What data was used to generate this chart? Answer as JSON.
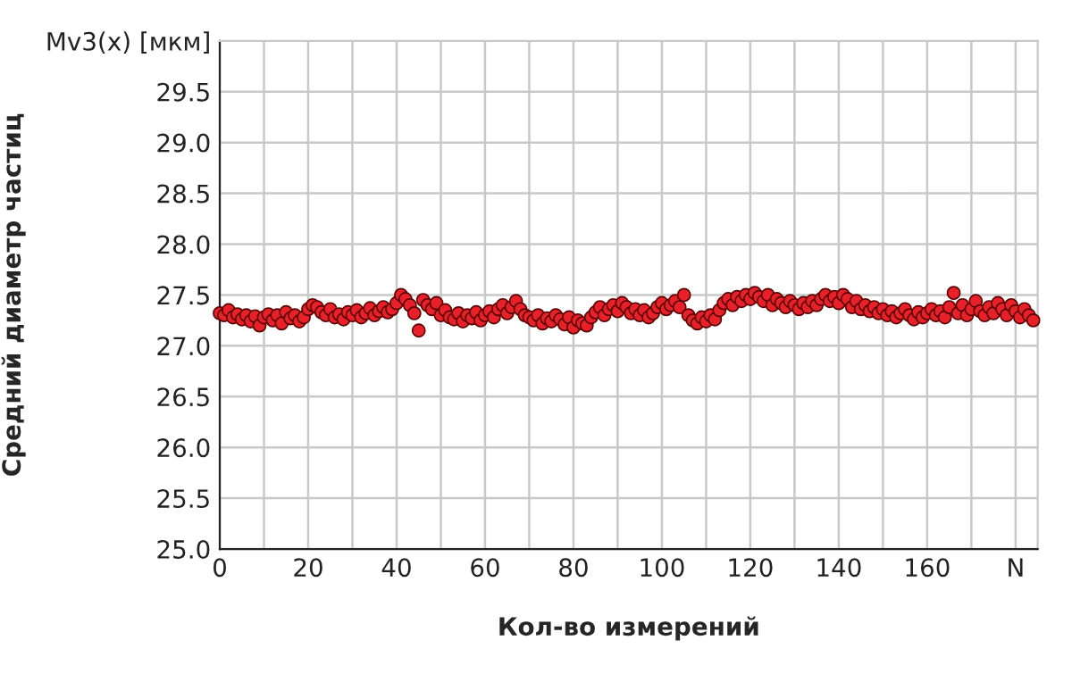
{
  "chart_data": {
    "type": "scatter",
    "xlabel": "Кол-во измерений",
    "ylabel": "Средний диаметр частиц",
    "xlim": [
      0,
      185
    ],
    "ylim": [
      25.0,
      30.0
    ],
    "xticks": [
      0,
      20,
      40,
      60,
      80,
      100,
      120,
      140,
      160,
      {
        "value": 180,
        "label": "N"
      }
    ],
    "yticks": [
      {
        "value": 25.0,
        "label": "25.0"
      },
      {
        "value": 25.5,
        "label": "25.5"
      },
      {
        "value": 26.0,
        "label": "26.0"
      },
      {
        "value": 26.5,
        "label": "26.5"
      },
      {
        "value": 27.0,
        "label": "27.0"
      },
      {
        "value": 27.5,
        "label": "27.5"
      },
      {
        "value": 28.0,
        "label": "28.0"
      },
      {
        "value": 28.5,
        "label": "28.5"
      },
      {
        "value": 29.0,
        "label": "29.0"
      },
      {
        "value": 29.5,
        "label": "29.5"
      },
      {
        "value": 30.0,
        "label": "Mv3(x) [мкм]"
      }
    ],
    "grid": true,
    "marker": "circle",
    "x": [
      0,
      1,
      2,
      3,
      4,
      5,
      6,
      7,
      8,
      9,
      10,
      11,
      12,
      13,
      14,
      15,
      16,
      17,
      18,
      19,
      20,
      21,
      22,
      23,
      24,
      25,
      26,
      27,
      28,
      29,
      30,
      31,
      32,
      33,
      34,
      35,
      36,
      37,
      38,
      39,
      40,
      41,
      42,
      43,
      44,
      45,
      46,
      47,
      48,
      49,
      50,
      51,
      52,
      53,
      54,
      55,
      56,
      57,
      58,
      59,
      60,
      61,
      62,
      63,
      64,
      65,
      66,
      67,
      68,
      69,
      70,
      71,
      72,
      73,
      74,
      75,
      76,
      77,
      78,
      79,
      80,
      81,
      82,
      83,
      84,
      85,
      86,
      87,
      88,
      89,
      90,
      91,
      92,
      93,
      94,
      95,
      96,
      97,
      98,
      99,
      100,
      101,
      102,
      103,
      104,
      105,
      106,
      107,
      108,
      109,
      110,
      111,
      112,
      113,
      114,
      115,
      116,
      117,
      118,
      119,
      120,
      121,
      122,
      123,
      124,
      125,
      126,
      127,
      128,
      129,
      130,
      131,
      132,
      133,
      134,
      135,
      136,
      137,
      138,
      139,
      140,
      141,
      142,
      143,
      144,
      145,
      146,
      147,
      148,
      149,
      150,
      151,
      152,
      153,
      154,
      155,
      156,
      157,
      158,
      159,
      160,
      161,
      162,
      163,
      164,
      165,
      166,
      167,
      168,
      169,
      170,
      171,
      172,
      173,
      174,
      175,
      176,
      177,
      178,
      179,
      180,
      181,
      182,
      183,
      184
    ],
    "series": [
      {
        "color": "#e8202a",
        "values": [
          27.32,
          27.3,
          27.35,
          27.28,
          27.31,
          27.26,
          27.3,
          27.24,
          27.29,
          27.2,
          27.28,
          27.31,
          27.25,
          27.3,
          27.22,
          27.33,
          27.27,
          27.3,
          27.24,
          27.28,
          27.36,
          27.4,
          27.38,
          27.33,
          27.3,
          27.36,
          27.28,
          27.31,
          27.26,
          27.33,
          27.3,
          27.35,
          27.28,
          27.32,
          27.37,
          27.3,
          27.34,
          27.38,
          27.33,
          27.36,
          27.42,
          27.5,
          27.46,
          27.4,
          27.32,
          27.15,
          27.45,
          27.4,
          27.36,
          27.42,
          27.3,
          27.35,
          27.28,
          27.26,
          27.32,
          27.24,
          27.3,
          27.27,
          27.33,
          27.25,
          27.3,
          27.34,
          27.28,
          27.36,
          27.4,
          27.32,
          27.38,
          27.44,
          27.36,
          27.3,
          27.28,
          27.25,
          27.3,
          27.22,
          27.27,
          27.24,
          27.3,
          27.26,
          27.21,
          27.28,
          27.18,
          27.25,
          27.22,
          27.2,
          27.28,
          27.33,
          27.38,
          27.3,
          27.36,
          27.4,
          27.34,
          27.42,
          27.38,
          27.32,
          27.36,
          27.3,
          27.35,
          27.28,
          27.32,
          27.38,
          27.42,
          27.36,
          27.4,
          27.44,
          27.38,
          27.5,
          27.3,
          27.25,
          27.22,
          27.28,
          27.24,
          27.3,
          27.26,
          27.35,
          27.42,
          27.46,
          27.4,
          27.48,
          27.44,
          27.5,
          27.46,
          27.52,
          27.48,
          27.44,
          27.5,
          27.4,
          27.46,
          27.42,
          27.38,
          27.44,
          27.4,
          27.36,
          27.42,
          27.38,
          27.44,
          27.4,
          27.46,
          27.5,
          27.44,
          27.48,
          27.42,
          27.5,
          27.46,
          27.38,
          27.44,
          27.36,
          27.4,
          27.34,
          27.38,
          27.32,
          27.36,
          27.3,
          27.34,
          27.28,
          27.32,
          27.36,
          27.3,
          27.26,
          27.33,
          27.28,
          27.32,
          27.36,
          27.3,
          27.34,
          27.28,
          27.38,
          27.52,
          27.32,
          27.4,
          27.3,
          27.36,
          27.44,
          27.34,
          27.3,
          27.38,
          27.32,
          27.42,
          27.36,
          27.3,
          27.4,
          27.34,
          27.28,
          27.36,
          27.3,
          27.25
        ]
      }
    ]
  }
}
